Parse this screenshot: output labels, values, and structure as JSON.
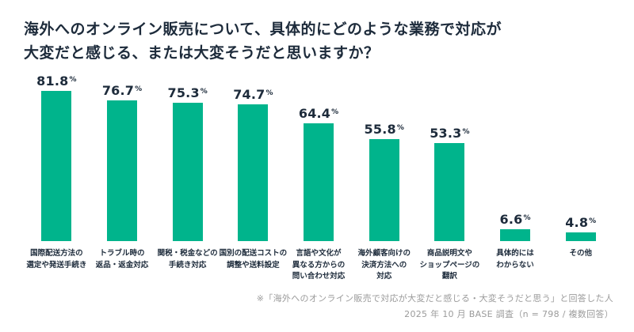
{
  "title": {
    "line1": "海外へのオンライン販売について、具体的にどのような業務で対応が",
    "line2": "大変だと感じる、または大変そうだと思いますか？"
  },
  "footer": {
    "line1": "※「海外へのオンライン販売で対応が大変だと感じる・大変そうだと思う」と回答した人",
    "line2": "2025 年 10 月 BASE 調査（n = 798 / 複数回答）"
  },
  "colors": {
    "bar": "#00b48c",
    "text": "#1d2b3b",
    "footer": "#9b9b9b"
  },
  "chart_data": {
    "type": "bar",
    "title": "海外へのオンライン販売について、具体的にどのような業務で対応が大変だと感じる、または大変そうだと思いますか？",
    "categories": [
      [
        "国際配送方法の",
        "選定や発送手続き"
      ],
      [
        "トラブル時の",
        "返品・返金対応"
      ],
      [
        "関税・税金などの",
        "手続き対応"
      ],
      [
        "国別の配送コストの",
        "調整や送料設定"
      ],
      [
        "言語や文化が",
        "異なる方からの",
        "問い合わせ対応"
      ],
      [
        "海外顧客向けの",
        "決済方法への",
        "対応"
      ],
      [
        "商品説明文や",
        "ショップページの",
        "翻訳"
      ],
      [
        "具体的には",
        "わからない"
      ],
      [
        "その他"
      ]
    ],
    "values": [
      81.8,
      76.7,
      75.3,
      74.7,
      64.4,
      55.8,
      53.3,
      6.6,
      4.8
    ],
    "value_suffix": "%",
    "xlabel": "",
    "ylabel": "",
    "ylim": [
      0,
      100
    ],
    "grid": false,
    "legend": "none",
    "bar_color": "#00b48c",
    "note": "n = 798, 複数回答"
  }
}
